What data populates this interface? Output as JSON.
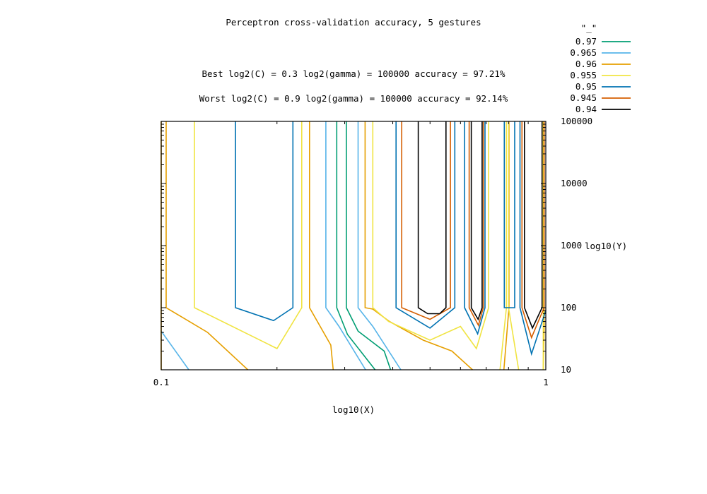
{
  "chart_data": {
    "type": "contour",
    "title": "Perceptron cross-validation accuracy, 5 gestures",
    "annotations": [
      "Best log2(C) = 0.3  log2(gamma) = 100000  accuracy = 97.21%",
      "Worst log2(C) = 0.9  log2(gamma) = 100000   accuracy = 92.14%"
    ],
    "xlabel": "log10(X)",
    "ylabel": "log10(Y)",
    "x_scale": "log",
    "y_scale": "log",
    "xlim": [
      0.1,
      1
    ],
    "ylim": [
      10,
      100000
    ],
    "x_ticks": [
      {
        "value": 0.1,
        "label": "0.1"
      },
      {
        "value": 1,
        "label": "1"
      }
    ],
    "y_ticks": [
      {
        "value": 10,
        "label": "10"
      },
      {
        "value": 100,
        "label": "100"
      },
      {
        "value": 1000,
        "label": "1000"
      },
      {
        "value": 10000,
        "label": "10000"
      },
      {
        "value": 100000,
        "label": "100000"
      }
    ],
    "legend_title": "\"_\"",
    "legend_position": "top-right outside",
    "grid": false,
    "series": [
      {
        "name": "0.97",
        "color": "#009e73",
        "lines": [
          [
            [
              0.286,
              100000
            ],
            [
              0.286,
              100
            ],
            [
              0.305,
              37
            ],
            [
              0.36,
              10
            ]
          ],
          [
            [
              0.303,
              100000
            ],
            [
              0.303,
              100
            ],
            [
              0.325,
              42
            ],
            [
              0.38,
              20
            ],
            [
              0.395,
              10
            ]
          ]
        ]
      },
      {
        "name": "0.965",
        "color": "#56b4e9",
        "lines": [
          [
            [
              0.1,
              42
            ],
            [
              0.118,
              10
            ]
          ],
          [
            [
              0.268,
              100000
            ],
            [
              0.268,
              100
            ],
            [
              0.29,
              50
            ],
            [
              0.34,
              10
            ]
          ],
          [
            [
              0.325,
              100000
            ],
            [
              0.325,
              100
            ],
            [
              0.355,
              50
            ],
            [
              0.42,
              10
            ]
          ]
        ]
      },
      {
        "name": "0.96",
        "color": "#e69f00",
        "lines": [
          [
            [
              0.1,
              100000
            ],
            [
              0.1,
              10
            ]
          ],
          [
            [
              0.103,
              100000
            ],
            [
              0.103,
              100
            ],
            [
              0.132,
              40
            ],
            [
              0.168,
              10
            ]
          ],
          [
            [
              0.243,
              100000
            ],
            [
              0.243,
              100
            ],
            [
              0.276,
              25
            ],
            [
              0.28,
              10
            ]
          ],
          [
            [
              0.339,
              100000
            ],
            [
              0.339,
              100
            ],
            [
              0.355,
              95
            ],
            [
              0.392,
              60
            ],
            [
              0.48,
              30
            ],
            [
              0.57,
              20
            ],
            [
              0.645,
              10
            ]
          ],
          [
            [
              0.802,
              100000
            ],
            [
              0.802,
              100
            ],
            [
              0.778,
              10
            ]
          ],
          [
            [
              0.99,
              100000
            ],
            [
              0.99,
              50
            ],
            [
              0.985,
              10
            ]
          ]
        ]
      },
      {
        "name": "0.955",
        "color": "#f0e442",
        "lines": [
          [
            [
              0.122,
              100000
            ],
            [
              0.122,
              100
            ],
            [
              0.2,
              22
            ],
            [
              0.232,
              100
            ],
            [
              0.232,
              100000
            ]
          ],
          [
            [
              0.355,
              100000
            ],
            [
              0.355,
              100
            ],
            [
              0.39,
              60
            ],
            [
              0.5,
              30
            ],
            [
              0.6,
              50
            ],
            [
              0.66,
              22
            ],
            [
              0.71,
              100
            ],
            [
              0.71,
              100000
            ]
          ],
          [
            [
              0.8,
              100000
            ],
            [
              0.8,
              100
            ],
            [
              0.85,
              10
            ]
          ],
          [
            [
              0.79,
              100000
            ],
            [
              0.79,
              100
            ],
            [
              0.76,
              10
            ]
          ],
          [
            [
              0.985,
              100000
            ],
            [
              0.985,
              10
            ]
          ]
        ]
      },
      {
        "name": "0.95",
        "color": "#0072b2",
        "lines": [
          [
            [
              0.156,
              100000
            ],
            [
              0.156,
              100
            ],
            [
              0.196,
              62
            ],
            [
              0.22,
              100
            ],
            [
              0.22,
              100000
            ]
          ],
          [
            [
              0.408,
              100000
            ],
            [
              0.408,
              100
            ],
            [
              0.5,
              47
            ],
            [
              0.58,
              100
            ],
            [
              0.58,
              100000
            ]
          ],
          [
            [
              0.615,
              100000
            ],
            [
              0.615,
              100
            ],
            [
              0.665,
              38
            ],
            [
              0.695,
              100
            ],
            [
              0.695,
              100000
            ]
          ],
          [
            [
              0.78,
              100000
            ],
            [
              0.78,
              100
            ],
            [
              0.83,
              100
            ],
            [
              0.83,
              100000
            ]
          ],
          [
            [
              0.857,
              100000
            ],
            [
              0.857,
              100
            ],
            [
              0.918,
              18
            ],
            [
              1,
              90
            ]
          ]
        ]
      },
      {
        "name": "0.945",
        "color": "#d55e00",
        "lines": [
          [
            [
              0.422,
              100000
            ],
            [
              0.422,
              100
            ],
            [
              0.5,
              65
            ],
            [
              0.565,
              100
            ],
            [
              0.565,
              100000
            ]
          ],
          [
            [
              0.632,
              100000
            ],
            [
              0.632,
              100
            ],
            [
              0.668,
              52
            ],
            [
              0.688,
              100
            ],
            [
              0.688,
              100000
            ]
          ],
          [
            [
              0.867,
              100000
            ],
            [
              0.867,
              100
            ],
            [
              0.918,
              33
            ],
            [
              0.99,
              100
            ],
            [
              0.99,
              100000
            ]
          ]
        ]
      },
      {
        "name": "0.94",
        "color": "#000000",
        "lines": [
          [
            [
              0.466,
              100000
            ],
            [
              0.466,
              100
            ],
            [
              0.493,
              80
            ],
            [
              0.53,
              80
            ],
            [
              0.55,
              100
            ],
            [
              0.55,
              100000
            ]
          ],
          [
            [
              0.64,
              100000
            ],
            [
              0.64,
              100
            ],
            [
              0.667,
              65
            ],
            [
              0.683,
              100
            ],
            [
              0.683,
              100000
            ]
          ],
          [
            [
              0.88,
              100000
            ],
            [
              0.88,
              100
            ],
            [
              0.923,
              47
            ],
            [
              0.978,
              100
            ],
            [
              0.978,
              100000
            ]
          ]
        ]
      }
    ]
  }
}
